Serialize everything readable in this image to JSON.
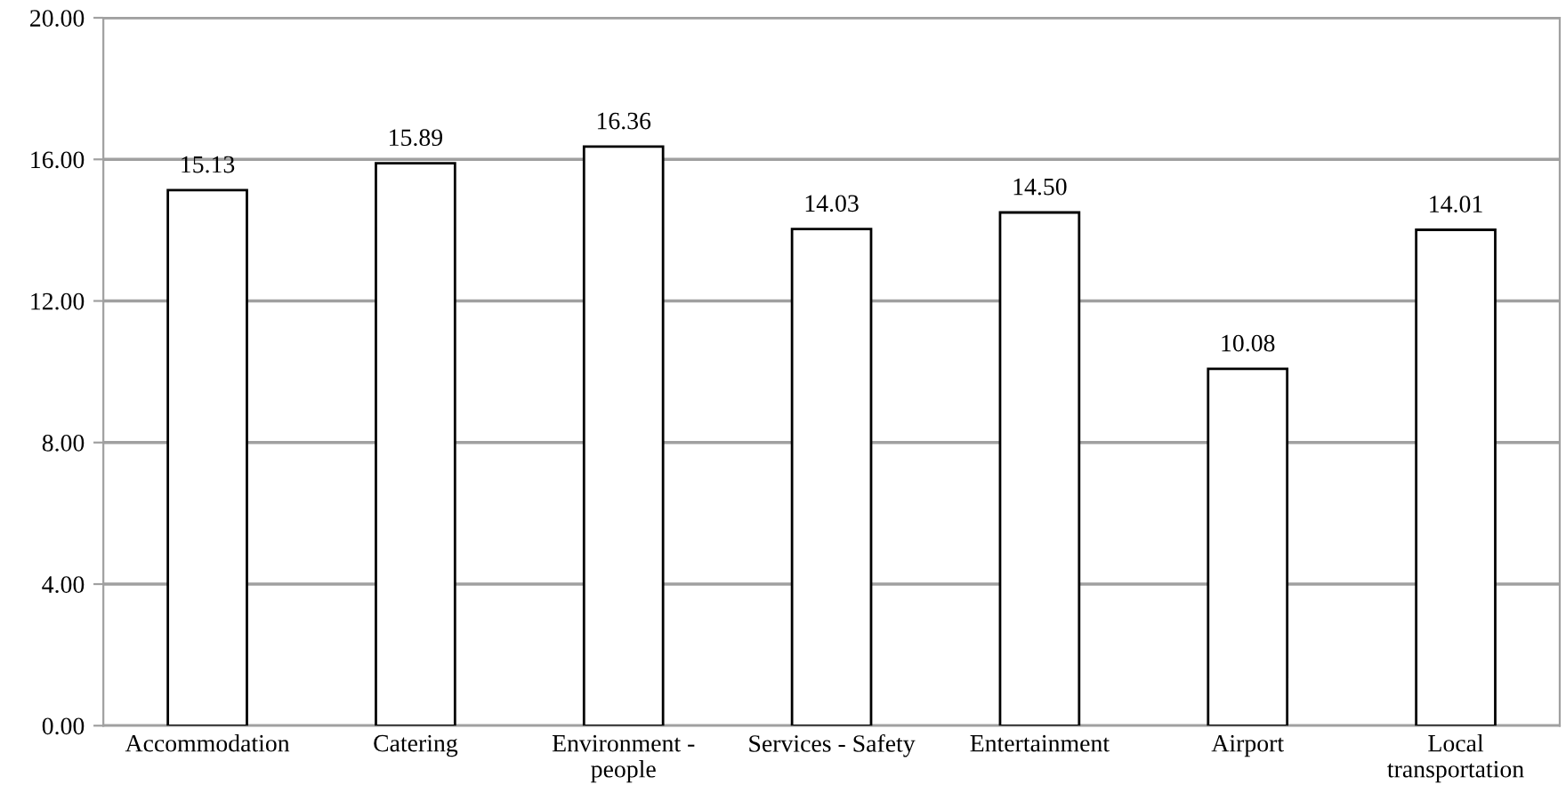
{
  "chart_data": {
    "type": "bar",
    "categories": [
      "Accommodation",
      "Catering",
      "Environment -\npeople",
      "Services - Safety",
      "Entertainment",
      "Airport",
      "Local\ntransportation"
    ],
    "values": [
      15.13,
      15.89,
      16.36,
      14.03,
      14.5,
      10.08,
      14.01
    ],
    "value_labels": [
      "15.13",
      "15.89",
      "16.36",
      "14.03",
      "14.50",
      "10.08",
      "14.01"
    ],
    "color": "#ffffff",
    "ylim": [
      0,
      20
    ],
    "yticks": [
      {
        "value": 0,
        "label": "0.00"
      },
      {
        "value": 4,
        "label": "4.00"
      },
      {
        "value": 8,
        "label": "8.00"
      },
      {
        "value": 12,
        "label": "12.00"
      },
      {
        "value": 16,
        "label": "16.00"
      },
      {
        "value": 20,
        "label": "20.00"
      }
    ],
    "grid": "y"
  }
}
